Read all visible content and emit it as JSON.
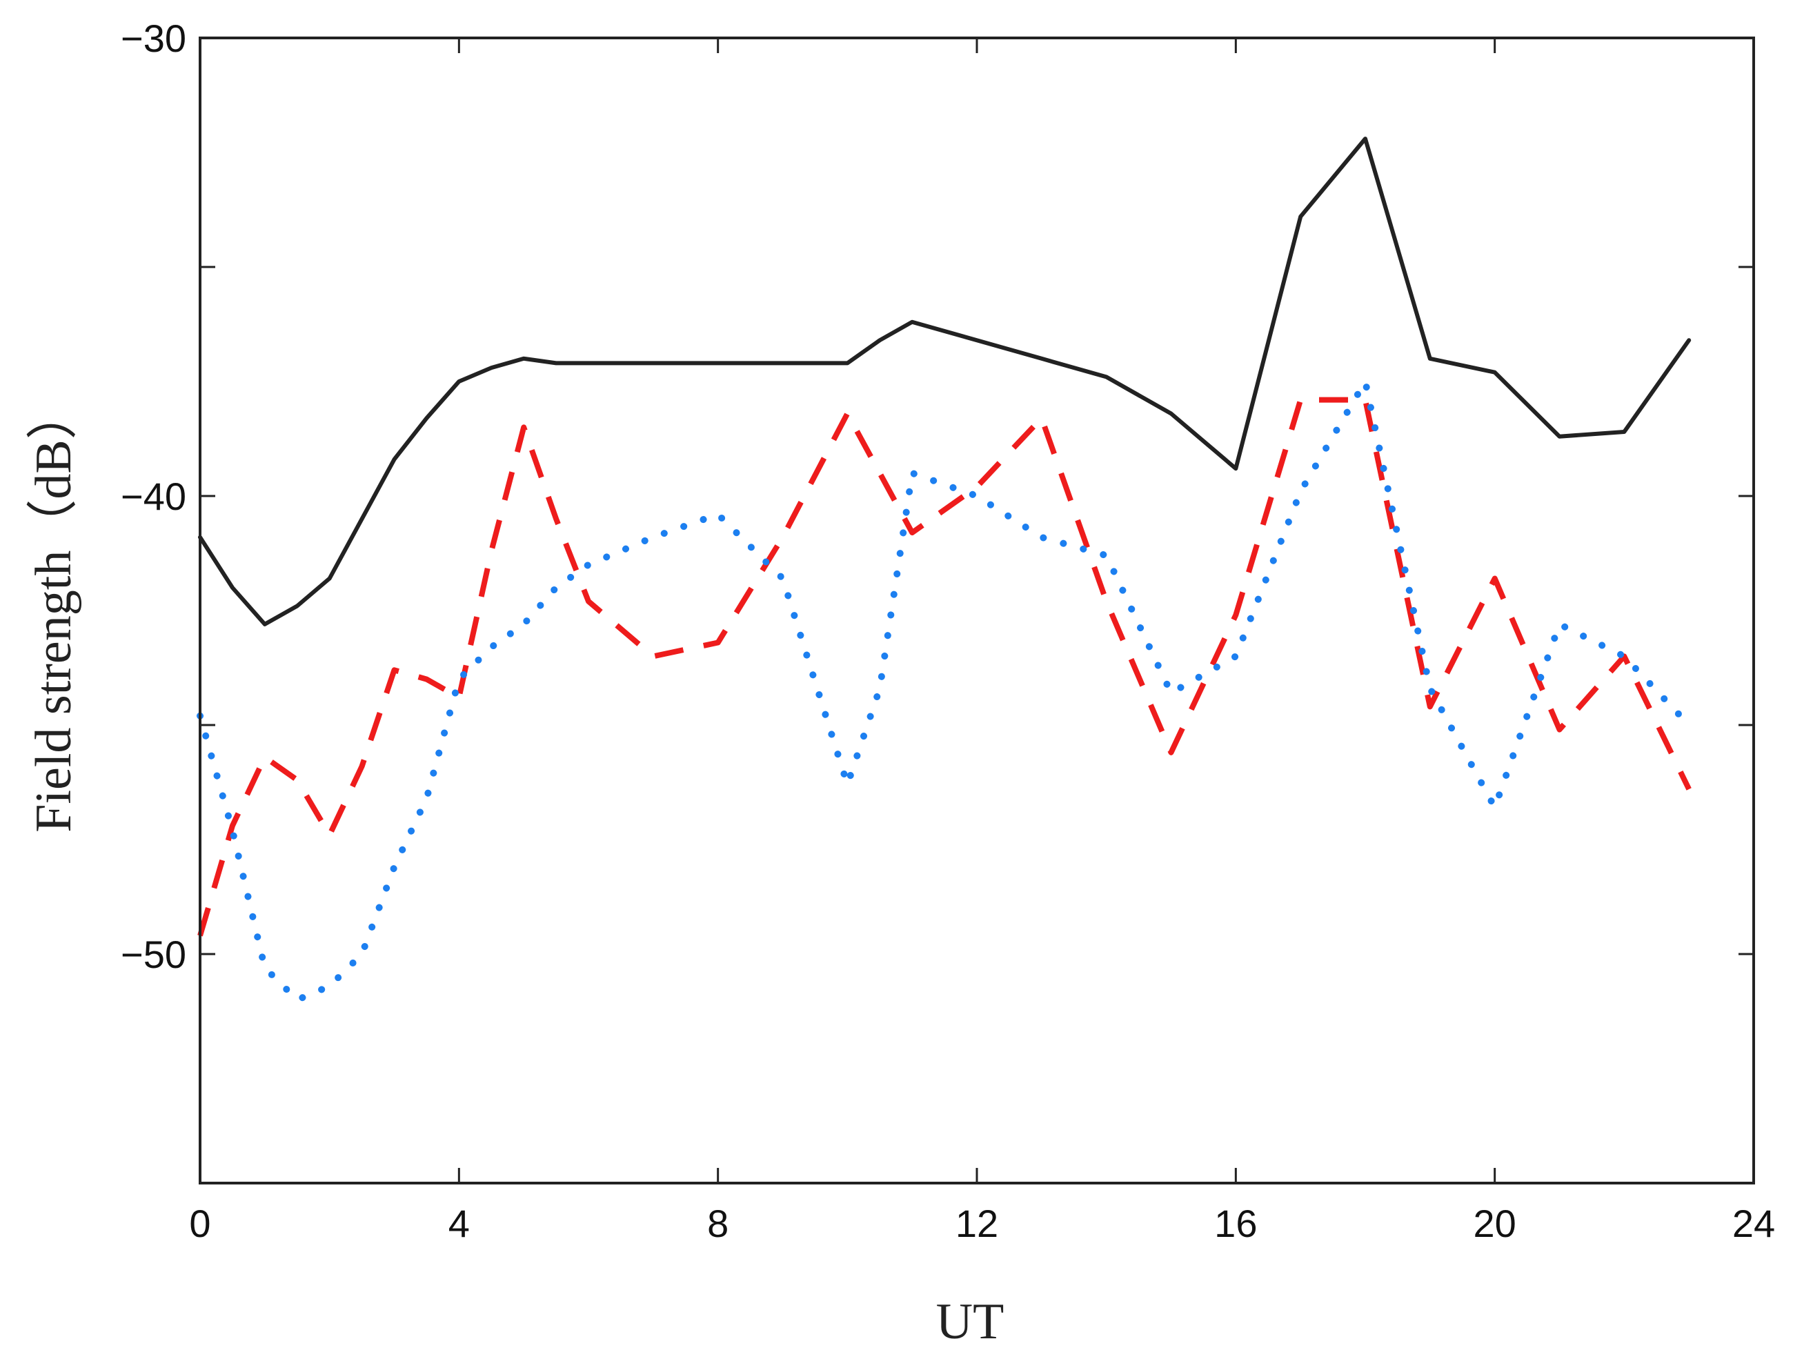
{
  "chart_data": {
    "type": "line",
    "xlabel": "UT",
    "ylabel": "Field strength（dB）",
    "xlim": [
      0,
      24
    ],
    "ylim": [
      -55,
      -30
    ],
    "xticks": [
      0,
      4,
      8,
      12,
      16,
      20,
      24
    ],
    "yticks_labeled": [
      -30,
      -40,
      -50
    ],
    "yticks_all": [
      -30,
      -35,
      -40,
      -45,
      -50
    ],
    "grid": false,
    "legend": "none",
    "series": [
      {
        "style": "solid",
        "color": "#222222",
        "x": [
          0,
          0.5,
          1,
          1.5,
          2,
          2.5,
          3,
          3.5,
          4,
          4.5,
          5,
          5.5,
          6,
          7,
          8,
          9,
          10,
          10.5,
          11,
          12,
          13,
          14,
          15,
          16,
          17,
          18,
          19,
          20,
          21,
          22,
          23
        ],
        "y": [
          -40.9,
          -42.0,
          -42.8,
          -42.4,
          -41.8,
          -40.5,
          -39.2,
          -38.3,
          -37.5,
          -37.2,
          -37.0,
          -37.1,
          -37.1,
          -37.1,
          -37.1,
          -37.1,
          -37.1,
          -36.6,
          -36.2,
          -36.6,
          -37.0,
          -37.4,
          -38.2,
          -39.4,
          -33.9,
          -32.2,
          -37.0,
          -37.3,
          -38.7,
          -38.6,
          -36.6
        ]
      },
      {
        "style": "dashed",
        "color": "#ee1c1c",
        "x": [
          0,
          0.5,
          1,
          1.5,
          2,
          2.5,
          3,
          3.5,
          4,
          4.5,
          5,
          5.5,
          6,
          7,
          8,
          9,
          10,
          11,
          12,
          13,
          14,
          15,
          16,
          17,
          18,
          19,
          20,
          21,
          22,
          23
        ],
        "y": [
          -49.6,
          -47.2,
          -45.7,
          -46.2,
          -47.4,
          -45.9,
          -43.8,
          -44.0,
          -44.4,
          -41.2,
          -38.5,
          -40.5,
          -42.3,
          -43.5,
          -43.2,
          -40.9,
          -38.2,
          -40.8,
          -39.8,
          -38.3,
          -42.3,
          -45.6,
          -42.6,
          -37.9,
          -37.9,
          -44.6,
          -41.8,
          -45.1,
          -43.5,
          -46.4
        ]
      },
      {
        "style": "dotted",
        "color": "#1c7ff0",
        "x": [
          0,
          0.5,
          1,
          1.5,
          2,
          2.5,
          3,
          3.5,
          4,
          4.5,
          5,
          5.5,
          6,
          7,
          8,
          9,
          10,
          10.5,
          11,
          12,
          13,
          14,
          15,
          16,
          17,
          18,
          19,
          20,
          21,
          22,
          23
        ],
        "y": [
          -44.8,
          -47.3,
          -50.3,
          -51.0,
          -50.7,
          -50.0,
          -48.1,
          -46.6,
          -44.0,
          -43.3,
          -42.8,
          -42.0,
          -41.5,
          -40.9,
          -40.4,
          -41.8,
          -46.3,
          -44.2,
          -39.5,
          -40.0,
          -40.9,
          -41.3,
          -44.3,
          -43.5,
          -39.9,
          -37.5,
          -44.2,
          -46.8,
          -42.8,
          -43.5,
          -45.0
        ]
      }
    ]
  }
}
